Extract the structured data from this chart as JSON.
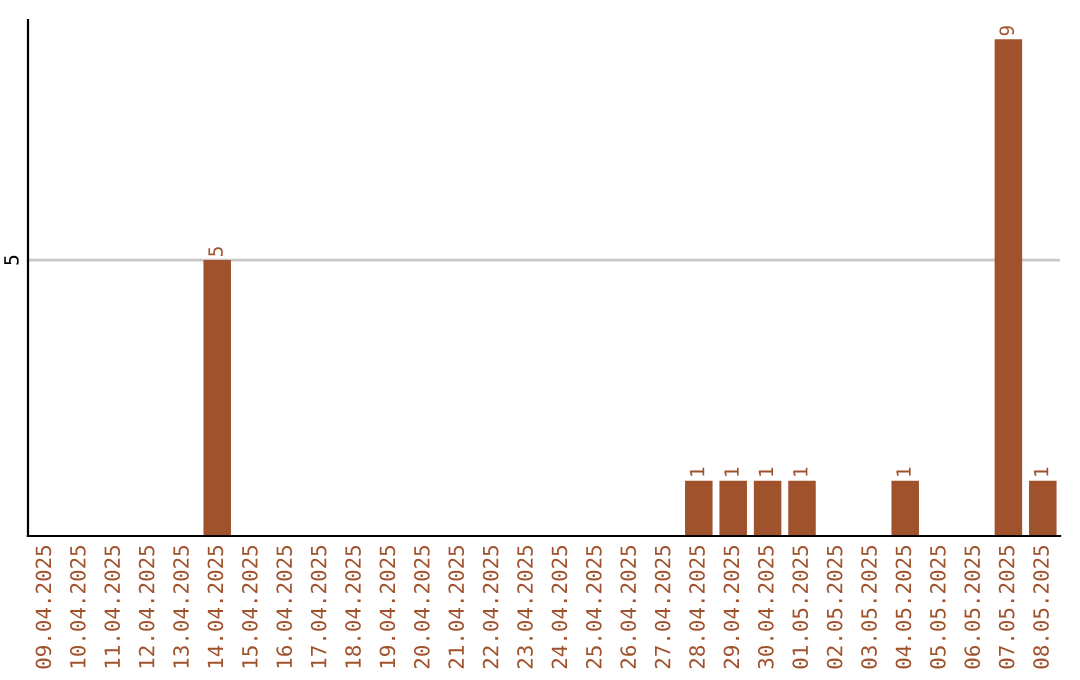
{
  "chart_data": {
    "type": "bar",
    "categories": [
      "09.04.2025",
      "10.04.2025",
      "11.04.2025",
      "12.04.2025",
      "13.04.2025",
      "14.04.2025",
      "15.04.2025",
      "16.04.2025",
      "17.04.2025",
      "18.04.2025",
      "19.04.2025",
      "20.04.2025",
      "21.04.2025",
      "22.04.2025",
      "23.04.2025",
      "24.04.2025",
      "25.04.2025",
      "26.04.2025",
      "27.04.2025",
      "28.04.2025",
      "29.04.2025",
      "30.04.2025",
      "01.05.2025",
      "02.05.2025",
      "03.05.2025",
      "04.05.2025",
      "05.05.2025",
      "06.05.2025",
      "07.05.2025",
      "08.05.2025"
    ],
    "values": [
      0,
      0,
      0,
      0,
      0,
      5,
      0,
      0,
      0,
      0,
      0,
      0,
      0,
      0,
      0,
      0,
      0,
      0,
      0,
      1,
      1,
      1,
      1,
      0,
      0,
      1,
      0,
      0,
      9,
      1
    ],
    "value_labels": [
      null,
      null,
      null,
      null,
      null,
      "5",
      null,
      null,
      null,
      null,
      null,
      null,
      null,
      null,
      null,
      null,
      null,
      null,
      null,
      "1",
      "1",
      "1",
      "1",
      null,
      null,
      "1",
      null,
      null,
      "9",
      "1"
    ],
    "color": "#a0522d",
    "ylim": [
      0,
      9.35
    ],
    "yticks": [
      5
    ],
    "grid": "y"
  }
}
